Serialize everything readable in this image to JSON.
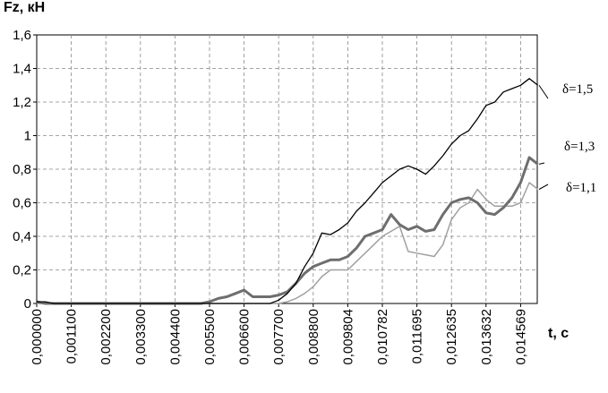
{
  "chart_data": {
    "type": "line",
    "ylabel": "Fz, кН",
    "xlabel": "t, c",
    "categories": [
      "0,000000",
      null,
      null,
      null,
      "0,001100",
      null,
      null,
      null,
      "0,002200",
      null,
      null,
      null,
      "0,003300",
      null,
      null,
      null,
      "0,004400",
      null,
      null,
      null,
      "0,005500",
      null,
      null,
      null,
      "0,006600",
      null,
      null,
      null,
      "0,007700",
      null,
      null,
      null,
      "0,008800",
      null,
      null,
      null,
      "0,009804",
      null,
      null,
      null,
      "0,010782",
      null,
      null,
      null,
      "0,011695",
      null,
      null,
      null,
      "0,012635",
      null,
      null,
      null,
      "0,013632",
      null,
      null,
      null,
      "0,014569",
      null,
      null
    ],
    "ylim": [
      0,
      1.6
    ],
    "yticks": [
      0,
      {
        "value": 0.2,
        "label": "0,2"
      },
      {
        "value": 0.4,
        "label": "0,4"
      },
      {
        "value": 0.6,
        "label": "0,6"
      },
      {
        "value": 0.8,
        "label": "0,8"
      },
      1,
      {
        "value": 1.2,
        "label": "1,2"
      },
      {
        "value": 1.4,
        "label": "1,4"
      },
      {
        "value": 1.6,
        "label": "1,6"
      }
    ],
    "grid": true,
    "series": [
      {
        "name": "δ=1,5",
        "color": "#000000",
        "width": 1.3,
        "values": [
          0.01,
          0.01,
          0,
          0,
          0,
          0,
          0,
          0,
          0,
          0,
          0,
          0,
          0,
          0,
          0,
          0,
          0,
          0,
          0,
          0,
          0,
          0,
          0,
          0,
          0,
          0,
          0,
          0,
          0.02,
          0.06,
          0.12,
          0.22,
          0.3,
          0.42,
          0.41,
          0.44,
          0.48,
          0.55,
          0.6,
          0.66,
          0.72,
          0.76,
          0.8,
          0.82,
          0.8,
          0.77,
          0.82,
          0.88,
          0.95,
          1.0,
          1.03,
          1.1,
          1.18,
          1.2,
          1.26,
          1.28,
          1.3,
          1.34,
          1.3
        ]
      },
      {
        "name": "δ=1,3",
        "color": "#6e6e6e",
        "width": 3,
        "values": [
          0.01,
          0,
          0,
          0,
          0,
          0,
          0,
          0,
          0,
          0,
          0,
          0,
          0,
          0,
          0,
          0,
          0,
          0,
          0,
          0,
          0.01,
          0.03,
          0.04,
          0.06,
          0.08,
          0.04,
          0.04,
          0.04,
          0.05,
          0.07,
          0.12,
          0.18,
          0.22,
          0.24,
          0.26,
          0.26,
          0.28,
          0.33,
          0.4,
          0.42,
          0.44,
          0.53,
          0.47,
          0.44,
          0.46,
          0.43,
          0.44,
          0.53,
          0.6,
          0.62,
          0.63,
          0.6,
          0.54,
          0.53,
          0.57,
          0.63,
          0.72,
          0.87,
          0.83
        ]
      },
      {
        "name": "δ=1,1",
        "color": "#a0a0a0",
        "width": 1.5,
        "values": [
          0,
          0,
          0,
          0,
          0,
          0,
          0,
          0,
          0,
          0,
          0,
          0,
          0,
          0,
          0,
          0,
          0,
          0,
          0,
          0,
          0,
          0,
          0,
          0,
          0,
          0,
          0,
          0,
          0,
          0.01,
          0.03,
          0.06,
          0.1,
          0.16,
          0.2,
          0.2,
          0.2,
          0.25,
          0.3,
          0.35,
          0.4,
          0.43,
          0.46,
          0.31,
          0.3,
          0.29,
          0.28,
          0.35,
          0.5,
          0.57,
          0.6,
          0.68,
          0.62,
          0.58,
          0.58,
          0.58,
          0.6,
          0.72,
          0.68
        ]
      }
    ]
  }
}
